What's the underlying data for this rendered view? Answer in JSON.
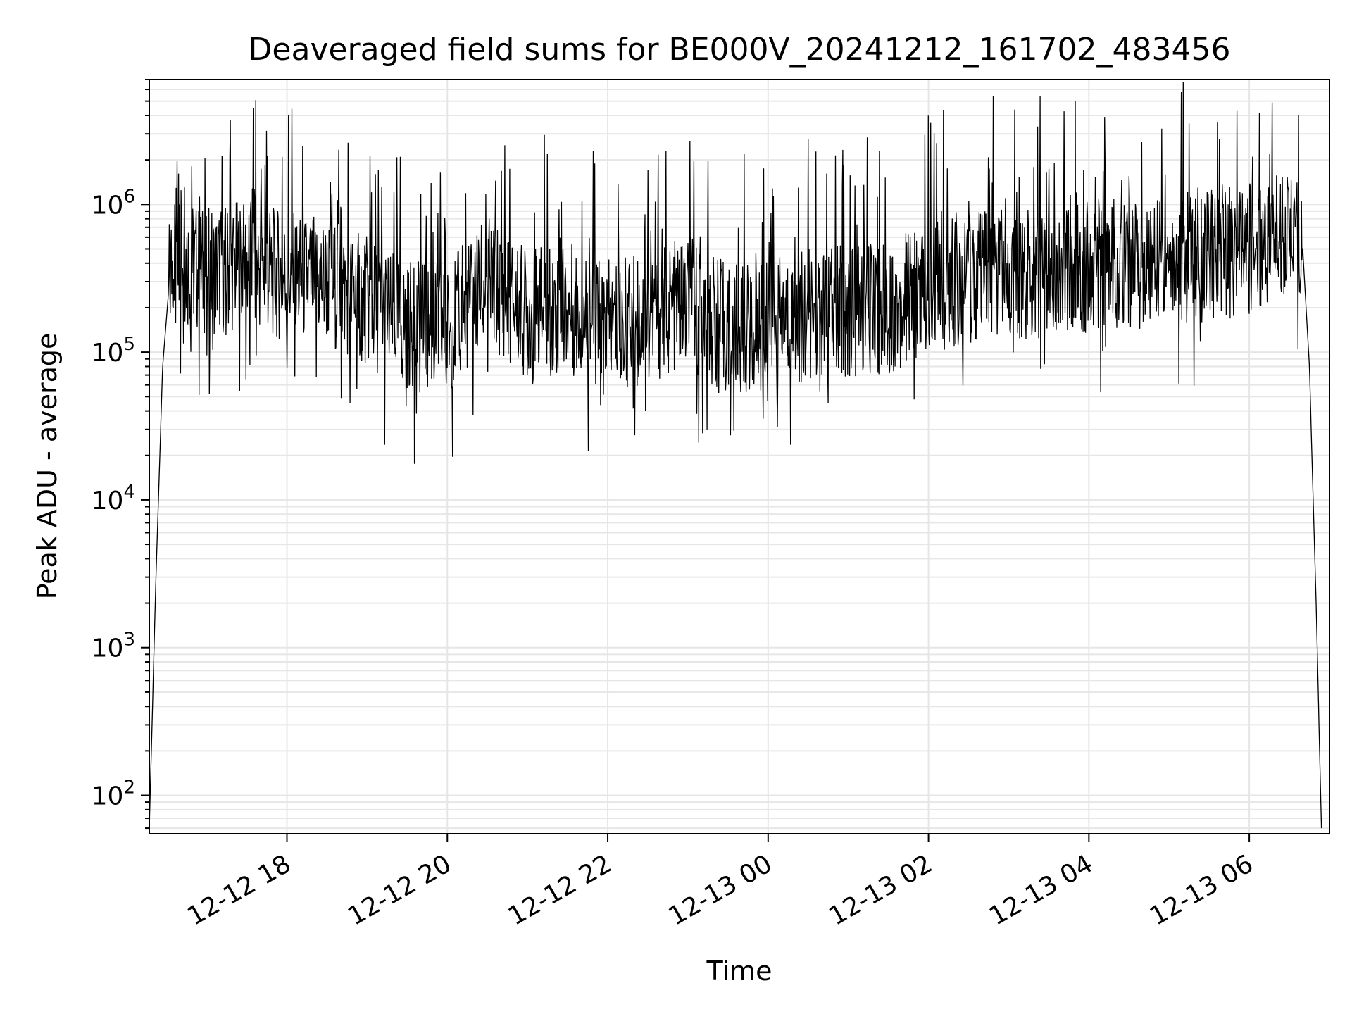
{
  "chart_data": {
    "type": "line",
    "title": "Deaveraged field sums for BE000V_20241212_161702_483456",
    "xlabel": "Time",
    "ylabel": "Peak ADU - average",
    "yscale": "log",
    "grid": true,
    "line_color": "#000000",
    "grid_color": "#e6e6e6",
    "xlim": [
      "2024-12-12 16:17",
      "2024-12-13 07:00"
    ],
    "ylim": [
      55,
      7000000
    ],
    "x_ticks": [
      {
        "value": "2024-12-12 18:00",
        "label": "12-12 18"
      },
      {
        "value": "2024-12-12 20:00",
        "label": "12-12 20"
      },
      {
        "value": "2024-12-12 22:00",
        "label": "12-12 22"
      },
      {
        "value": "2024-12-13 00:00",
        "label": "12-13 00"
      },
      {
        "value": "2024-12-13 02:00",
        "label": "12-13 02"
      },
      {
        "value": "2024-12-13 04:00",
        "label": "12-13 04"
      },
      {
        "value": "2024-12-13 06:00",
        "label": "12-13 06"
      }
    ],
    "y_ticks": [
      {
        "value": 100,
        "base": "10",
        "exp": "2"
      },
      {
        "value": 1000,
        "base": "10",
        "exp": "3"
      },
      {
        "value": 10000,
        "base": "10",
        "exp": "4"
      },
      {
        "value": 100000,
        "base": "10",
        "exp": "5"
      },
      {
        "value": 1000000,
        "base": "10",
        "exp": "6"
      }
    ],
    "series": [
      {
        "points": [
          [
            "2024-12-12 16:17",
            60
          ],
          [
            "2024-12-12 16:22",
            3000
          ],
          [
            "2024-12-12 16:27",
            80000
          ],
          [
            "2024-12-12 16:32",
            300000
          ],
          [
            "2024-12-12 16:37",
            600000
          ],
          [
            "2024-12-12 16:45",
            400000
          ],
          [
            "2024-12-12 17:00",
            350000
          ],
          [
            "2024-12-12 17:30",
            400000
          ],
          [
            "2024-12-12 18:00",
            320000
          ],
          [
            "2024-12-12 18:30",
            300000
          ],
          [
            "2024-12-12 19:00",
            220000
          ],
          [
            "2024-12-12 19:30",
            150000
          ],
          [
            "2024-12-12 20:00",
            140000
          ],
          [
            "2024-12-12 20:30",
            300000
          ],
          [
            "2024-12-12 21:00",
            180000
          ],
          [
            "2024-12-12 21:30",
            200000
          ],
          [
            "2024-12-12 22:00",
            150000
          ],
          [
            "2024-12-12 22:30",
            170000
          ],
          [
            "2024-12-12 23:00",
            220000
          ],
          [
            "2024-12-12 23:30",
            140000
          ],
          [
            "2024-12-13 00:00",
            150000
          ],
          [
            "2024-12-13 00:30",
            180000
          ],
          [
            "2024-12-13 01:00",
            190000
          ],
          [
            "2024-12-13 01:30",
            200000
          ],
          [
            "2024-12-13 02:00",
            270000
          ],
          [
            "2024-12-13 02:30",
            320000
          ],
          [
            "2024-12-13 03:00",
            330000
          ],
          [
            "2024-12-13 03:30",
            350000
          ],
          [
            "2024-12-13 04:00",
            380000
          ],
          [
            "2024-12-13 04:30",
            400000
          ],
          [
            "2024-12-13 05:00",
            420000
          ],
          [
            "2024-12-13 05:30",
            450000
          ],
          [
            "2024-12-13 06:00",
            500000
          ],
          [
            "2024-12-13 06:30",
            700000
          ],
          [
            "2024-12-13 06:40",
            500000
          ],
          [
            "2024-12-13 06:45",
            80000
          ],
          [
            "2024-12-13 06:50",
            2000
          ],
          [
            "2024-12-13 06:54",
            60
          ]
        ]
      }
    ]
  }
}
